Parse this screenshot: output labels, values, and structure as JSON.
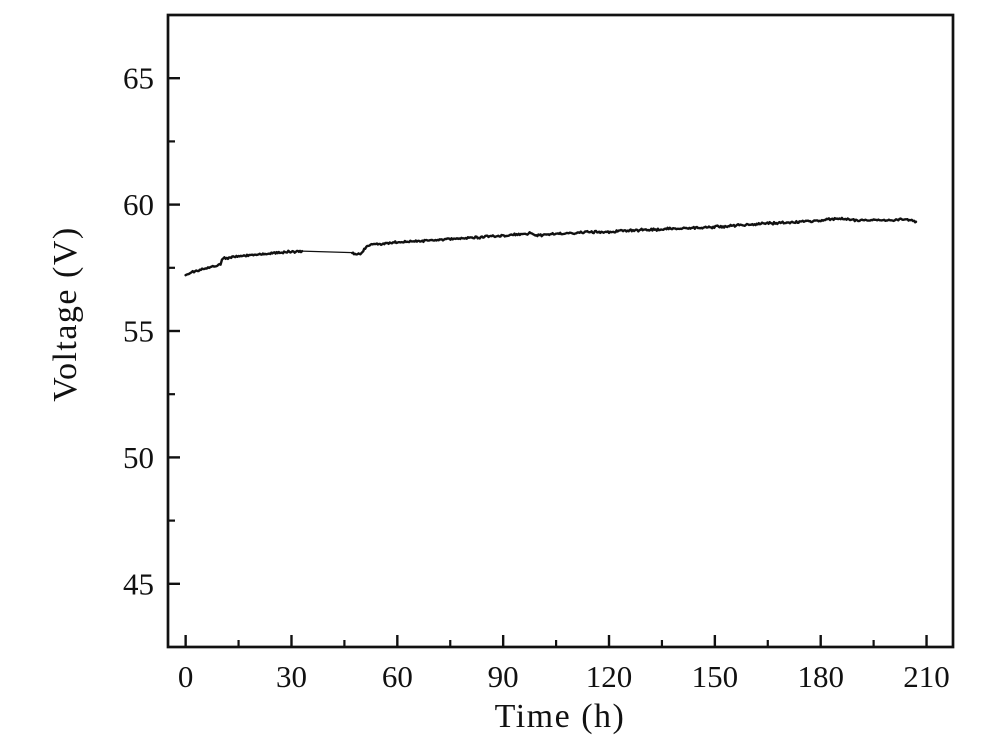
{
  "figure": {
    "background": "#ffffff"
  },
  "chart_data": {
    "type": "line",
    "title": "",
    "xlabel": "Time (h)",
    "ylabel": "Voltage (V)",
    "xlim": [
      -5,
      217.5
    ],
    "ylim": [
      42.5,
      67.5
    ],
    "x_ticks": [
      0,
      30,
      60,
      90,
      120,
      150,
      180,
      210
    ],
    "x_minor_ticks": [
      15,
      45,
      75,
      105,
      135,
      165,
      195
    ],
    "y_ticks": [
      45,
      50,
      55,
      60,
      65
    ],
    "y_minor_ticks": [
      47.5,
      52.5,
      57.5,
      62.5
    ],
    "grid": false,
    "legend": false,
    "axis_color": "#111111",
    "noise_amplitude_v": 0.055,
    "series": [
      {
        "name": "Voltage",
        "color": "#111111",
        "segments": [
          {
            "style": "noisy",
            "points": [
              [
                0,
                57.22
              ],
              [
                1,
                57.3
              ],
              [
                3,
                57.38
              ],
              [
                5,
                57.45
              ],
              [
                7,
                57.52
              ],
              [
                9.3,
                57.6
              ],
              [
                9.9,
                57.63
              ],
              [
                10.3,
                57.86
              ],
              [
                12,
                57.9
              ],
              [
                15,
                57.95
              ],
              [
                18,
                57.99
              ],
              [
                21,
                58.03
              ],
              [
                24,
                58.07
              ],
              [
                27,
                58.1
              ],
              [
                30,
                58.13
              ],
              [
                33,
                58.16
              ]
            ]
          },
          {
            "style": "plain",
            "points": [
              [
                33,
                58.16
              ],
              [
                47.2,
                58.1
              ]
            ]
          },
          {
            "style": "noisy",
            "points": [
              [
                47.2,
                58.1
              ],
              [
                48,
                58.05
              ],
              [
                49,
                58.04
              ],
              [
                49.8,
                58.07
              ],
              [
                50.6,
                58.25
              ],
              [
                51.5,
                58.35
              ],
              [
                53,
                58.42
              ],
              [
                56,
                58.46
              ],
              [
                60,
                58.5
              ],
              [
                64,
                58.54
              ],
              [
                68,
                58.58
              ],
              [
                72,
                58.61
              ],
              [
                76,
                58.65
              ],
              [
                80,
                58.68
              ],
              [
                84,
                58.71
              ],
              [
                88,
                58.75
              ],
              [
                92,
                58.79
              ],
              [
                95,
                58.82
              ],
              [
                97.5,
                58.85
              ],
              [
                98.5,
                58.8
              ],
              [
                100,
                58.78
              ],
              [
                101.5,
                58.81
              ],
              [
                104,
                58.84
              ],
              [
                108,
                58.87
              ],
              [
                112,
                58.89
              ],
              [
                116,
                58.91
              ],
              [
                120,
                58.93
              ],
              [
                124,
                58.96
              ],
              [
                128,
                58.99
              ],
              [
                132,
                59.01
              ],
              [
                136,
                59.03
              ],
              [
                140,
                59.05
              ],
              [
                144,
                59.08
              ],
              [
                148,
                59.1
              ],
              [
                152,
                59.13
              ],
              [
                156,
                59.17
              ],
              [
                160,
                59.21
              ],
              [
                164,
                59.25
              ],
              [
                168,
                59.28
              ],
              [
                171,
                59.3
              ],
              [
                174,
                59.32
              ],
              [
                177,
                59.34
              ],
              [
                180,
                59.37
              ],
              [
                182,
                59.4
              ],
              [
                184,
                59.44
              ],
              [
                186,
                59.43
              ],
              [
                188,
                59.4
              ],
              [
                190,
                59.38
              ],
              [
                192,
                59.37
              ],
              [
                194,
                59.39
              ],
              [
                196,
                59.38
              ],
              [
                198,
                59.37
              ],
              [
                200,
                59.39
              ],
              [
                202,
                59.4
              ],
              [
                204,
                59.41
              ],
              [
                205.5,
                59.38
              ],
              [
                206.5,
                59.33
              ],
              [
                207,
                59.32
              ]
            ]
          }
        ]
      }
    ]
  }
}
